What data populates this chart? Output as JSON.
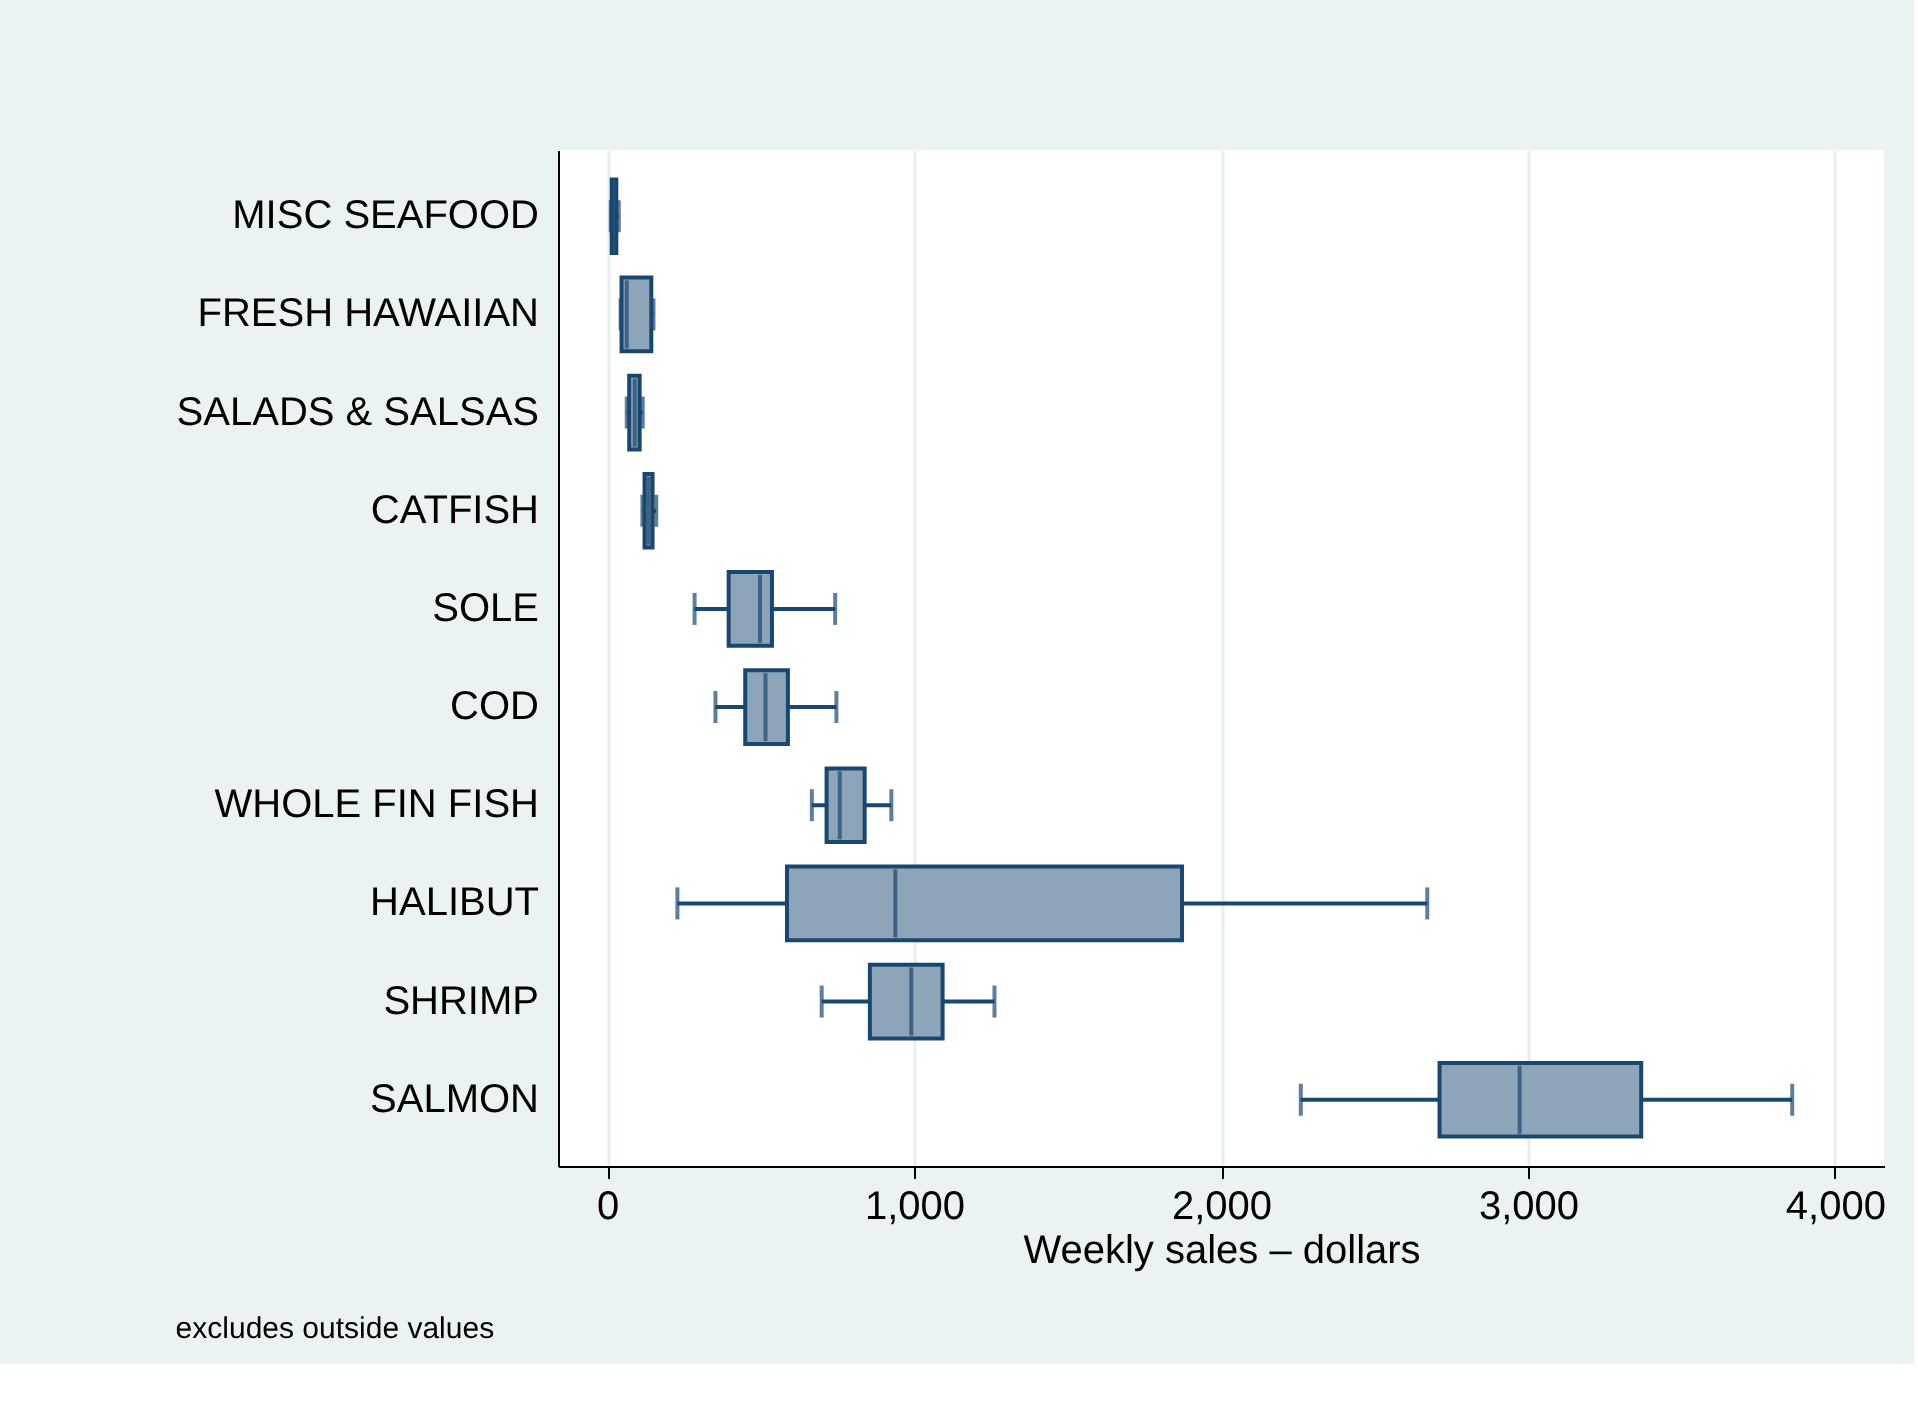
{
  "chart_data": {
    "type": "box",
    "orientation": "horizontal",
    "categories": [
      "MISC SEAFOOD",
      "FRESH HAWAIIAN",
      "SALADS & SALSAS",
      "CATFISH",
      "SOLE",
      "COD",
      "WHOLE FIN FISH",
      "HALIBUT",
      "SHRIMP",
      "SALMON"
    ],
    "boxes": [
      {
        "low": 12,
        "q1": 15,
        "median": 22,
        "q3": 30,
        "high": 38
      },
      {
        "low": 44,
        "q1": 47,
        "median": 64,
        "q3": 144,
        "high": 151
      },
      {
        "low": 64,
        "q1": 72,
        "median": 90,
        "q3": 106,
        "high": 116
      },
      {
        "low": 115,
        "q1": 122,
        "median": 135,
        "q3": 148,
        "high": 160
      },
      {
        "low": 285,
        "q1": 396,
        "median": 498,
        "q3": 537,
        "high": 743
      },
      {
        "low": 353,
        "q1": 450,
        "median": 516,
        "q3": 589,
        "high": 747
      },
      {
        "low": 667,
        "q1": 715,
        "median": 758,
        "q3": 839,
        "high": 926
      },
      {
        "low": 229,
        "q1": 586,
        "median": 939,
        "q3": 1873,
        "high": 2672
      },
      {
        "low": 699,
        "q1": 856,
        "median": 991,
        "q3": 1093,
        "high": 1262
      },
      {
        "low": 2260,
        "q1": 2712,
        "median": 2973,
        "q3": 3369,
        "high": 3861
      }
    ],
    "color": "#8ea4b8",
    "xlabel": "Weekly sales – dollars",
    "xlim": [
      -160,
      4160
    ],
    "xticks": [
      0,
      {
        "value": 1000,
        "label": "1,000"
      },
      {
        "value": 2000,
        "label": "2,000"
      },
      {
        "value": 3000,
        "label": "3,000"
      },
      {
        "value": 4000,
        "label": "4,000"
      }
    ],
    "grid": "x",
    "annotations": [
      "excludes outside values"
    ]
  }
}
